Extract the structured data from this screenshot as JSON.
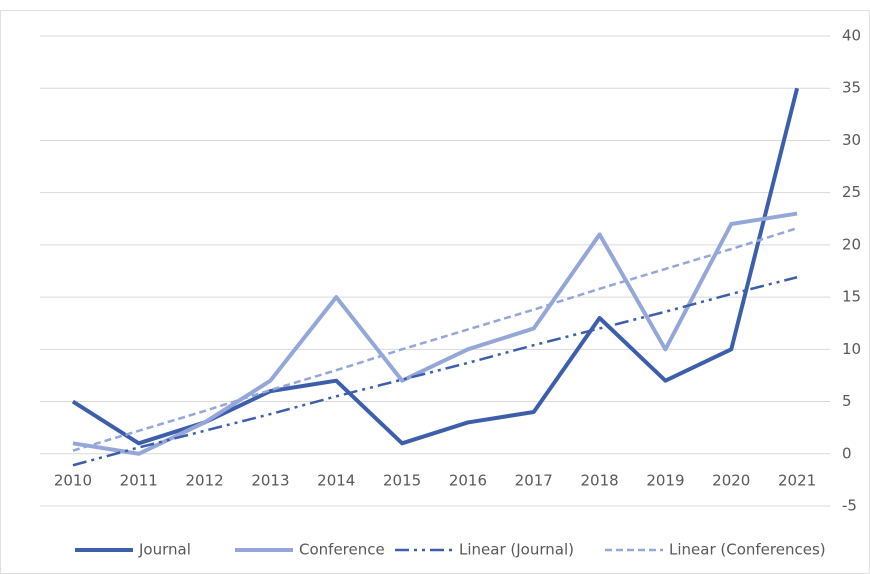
{
  "chart_data": {
    "type": "line",
    "categories": [
      "2010",
      "2011",
      "2012",
      "2013",
      "2014",
      "2015",
      "2016",
      "2017",
      "2018",
      "2019",
      "2020",
      "2021"
    ],
    "series": [
      {
        "name": "Journal",
        "color": "#3d5eab",
        "dash": "solid",
        "values": [
          5,
          1,
          3,
          6,
          7,
          1,
          3,
          4,
          13,
          7,
          10,
          35
        ]
      },
      {
        "name": "Conference",
        "color": "#95a7d9",
        "dash": "solid",
        "values": [
          1,
          0,
          3,
          7,
          15,
          7,
          10,
          12,
          21,
          10,
          22,
          23
        ]
      },
      {
        "name": "Linear (Journal)",
        "color": "#3d5eab",
        "dash": "dash-dot-dot",
        "values": [
          -1.1,
          0.6,
          2.2,
          3.8,
          5.5,
          7.1,
          8.7,
          10.4,
          12.0,
          13.6,
          15.3,
          16.9
        ]
      },
      {
        "name": "Linear (Conferences)",
        "color": "#95a7d9",
        "dash": "dashed",
        "values": [
          0.3,
          2.2,
          4.1,
          6.1,
          8.0,
          10.0,
          11.9,
          13.8,
          15.8,
          17.7,
          19.6,
          21.6
        ]
      }
    ],
    "ylim": [
      -5,
      40
    ],
    "yticks": [
      -5,
      0,
      5,
      10,
      15,
      20,
      25,
      30,
      35,
      40
    ],
    "grid": true,
    "y_axis_side": "right",
    "legend": "bottom"
  }
}
